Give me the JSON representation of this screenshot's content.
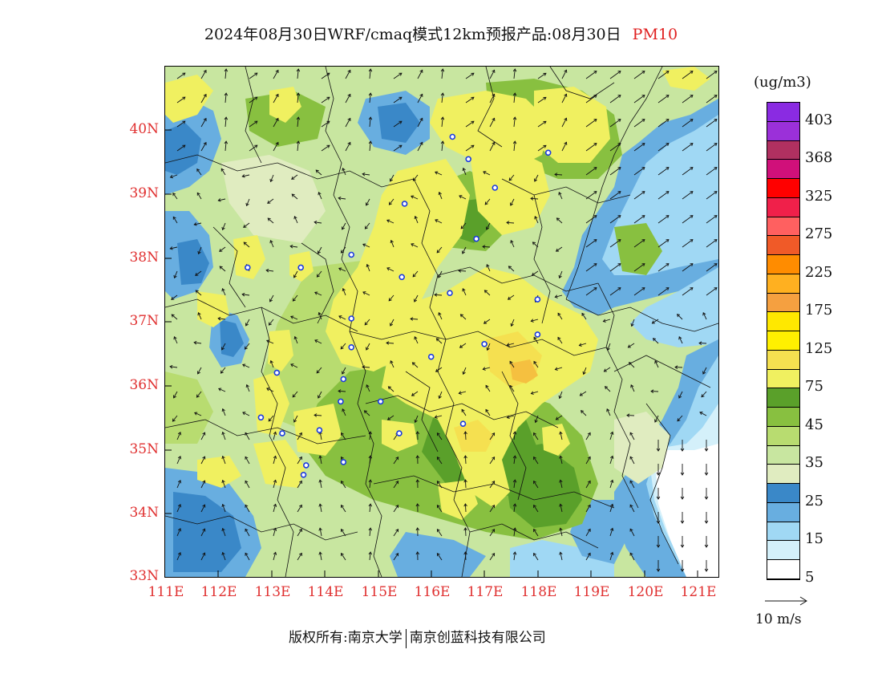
{
  "title": {
    "main": "2024年08月30日WRF/cmaq模式12km预报产品:08月30日",
    "pollutant": "PM10"
  },
  "axes": {
    "lat_labels": [
      "40N",
      "39N",
      "38N",
      "37N",
      "36N",
      "35N",
      "34N",
      "33N"
    ],
    "lon_labels": [
      "111E",
      "112E",
      "113E",
      "114E",
      "115E",
      "116E",
      "117E",
      "118E",
      "119E",
      "120E",
      "121E"
    ],
    "lat_range": [
      33,
      41
    ],
    "lon_range": [
      111,
      121.4
    ]
  },
  "legend": {
    "unit": "(ug/m3)",
    "labels": [
      "403",
      "368",
      "325",
      "275",
      "225",
      "175",
      "125",
      "75",
      "45",
      "35",
      "25",
      "15",
      "5"
    ],
    "colors": [
      "#8a2be2",
      "#9b30d9",
      "#b03060",
      "#d0107a",
      "#ff0000",
      "#f0204a",
      "#ff6060",
      "#f05a28",
      "#ff8c00",
      "#ffb020",
      "#f5a040",
      "#ffe800",
      "#fff000",
      "#f5e050",
      "#f0f060",
      "#5aa02a",
      "#88c040",
      "#b8dc70",
      "#c8e6a0",
      "#e0ecc0",
      "#3a88c8",
      "#68aee0",
      "#a0d8f4",
      "#d4f0fa",
      "#ffffff"
    ]
  },
  "wind_reference": {
    "label": "10 m/s"
  },
  "copyright": {
    "left": "版权所有:南京大学",
    "right": "南京创蓝科技有限公司"
  },
  "map_colors": {
    "base": "#c8e6a0",
    "yellow": "#f0f060",
    "yellow_dark": "#f5e050",
    "green_dark": "#5aa02a",
    "green_mid": "#88c040",
    "green_light": "#b8dc70",
    "pale": "#e0ecc0",
    "blue_dark": "#3a88c8",
    "blue_mid": "#68aee0",
    "blue_light": "#a0d8f4",
    "blue_pale": "#d4f0fa",
    "white": "#ffffff",
    "orange": "#f5c040"
  },
  "stations": [
    [
      116.4,
      39.9
    ],
    [
      116.7,
      39.55
    ],
    [
      117.2,
      39.1
    ],
    [
      118.2,
      39.65
    ],
    [
      115.5,
      38.85
    ],
    [
      116.85,
      38.3
    ],
    [
      114.5,
      38.05
    ],
    [
      115.45,
      37.7
    ],
    [
      116.35,
      37.45
    ],
    [
      112.55,
      37.85
    ],
    [
      113.55,
      37.85
    ],
    [
      114.5,
      37.05
    ],
    [
      118.0,
      37.35
    ],
    [
      117.0,
      36.65
    ],
    [
      118.0,
      36.8
    ],
    [
      114.5,
      36.6
    ],
    [
      116.0,
      36.45
    ],
    [
      113.1,
      36.2
    ],
    [
      114.35,
      36.1
    ],
    [
      114.3,
      35.75
    ],
    [
      115.05,
      35.75
    ],
    [
      112.8,
      35.5
    ],
    [
      116.6,
      35.4
    ],
    [
      113.2,
      35.25
    ],
    [
      113.9,
      35.3
    ],
    [
      115.4,
      35.25
    ],
    [
      114.35,
      34.8
    ],
    [
      113.65,
      34.75
    ],
    [
      113.6,
      34.6
    ]
  ]
}
